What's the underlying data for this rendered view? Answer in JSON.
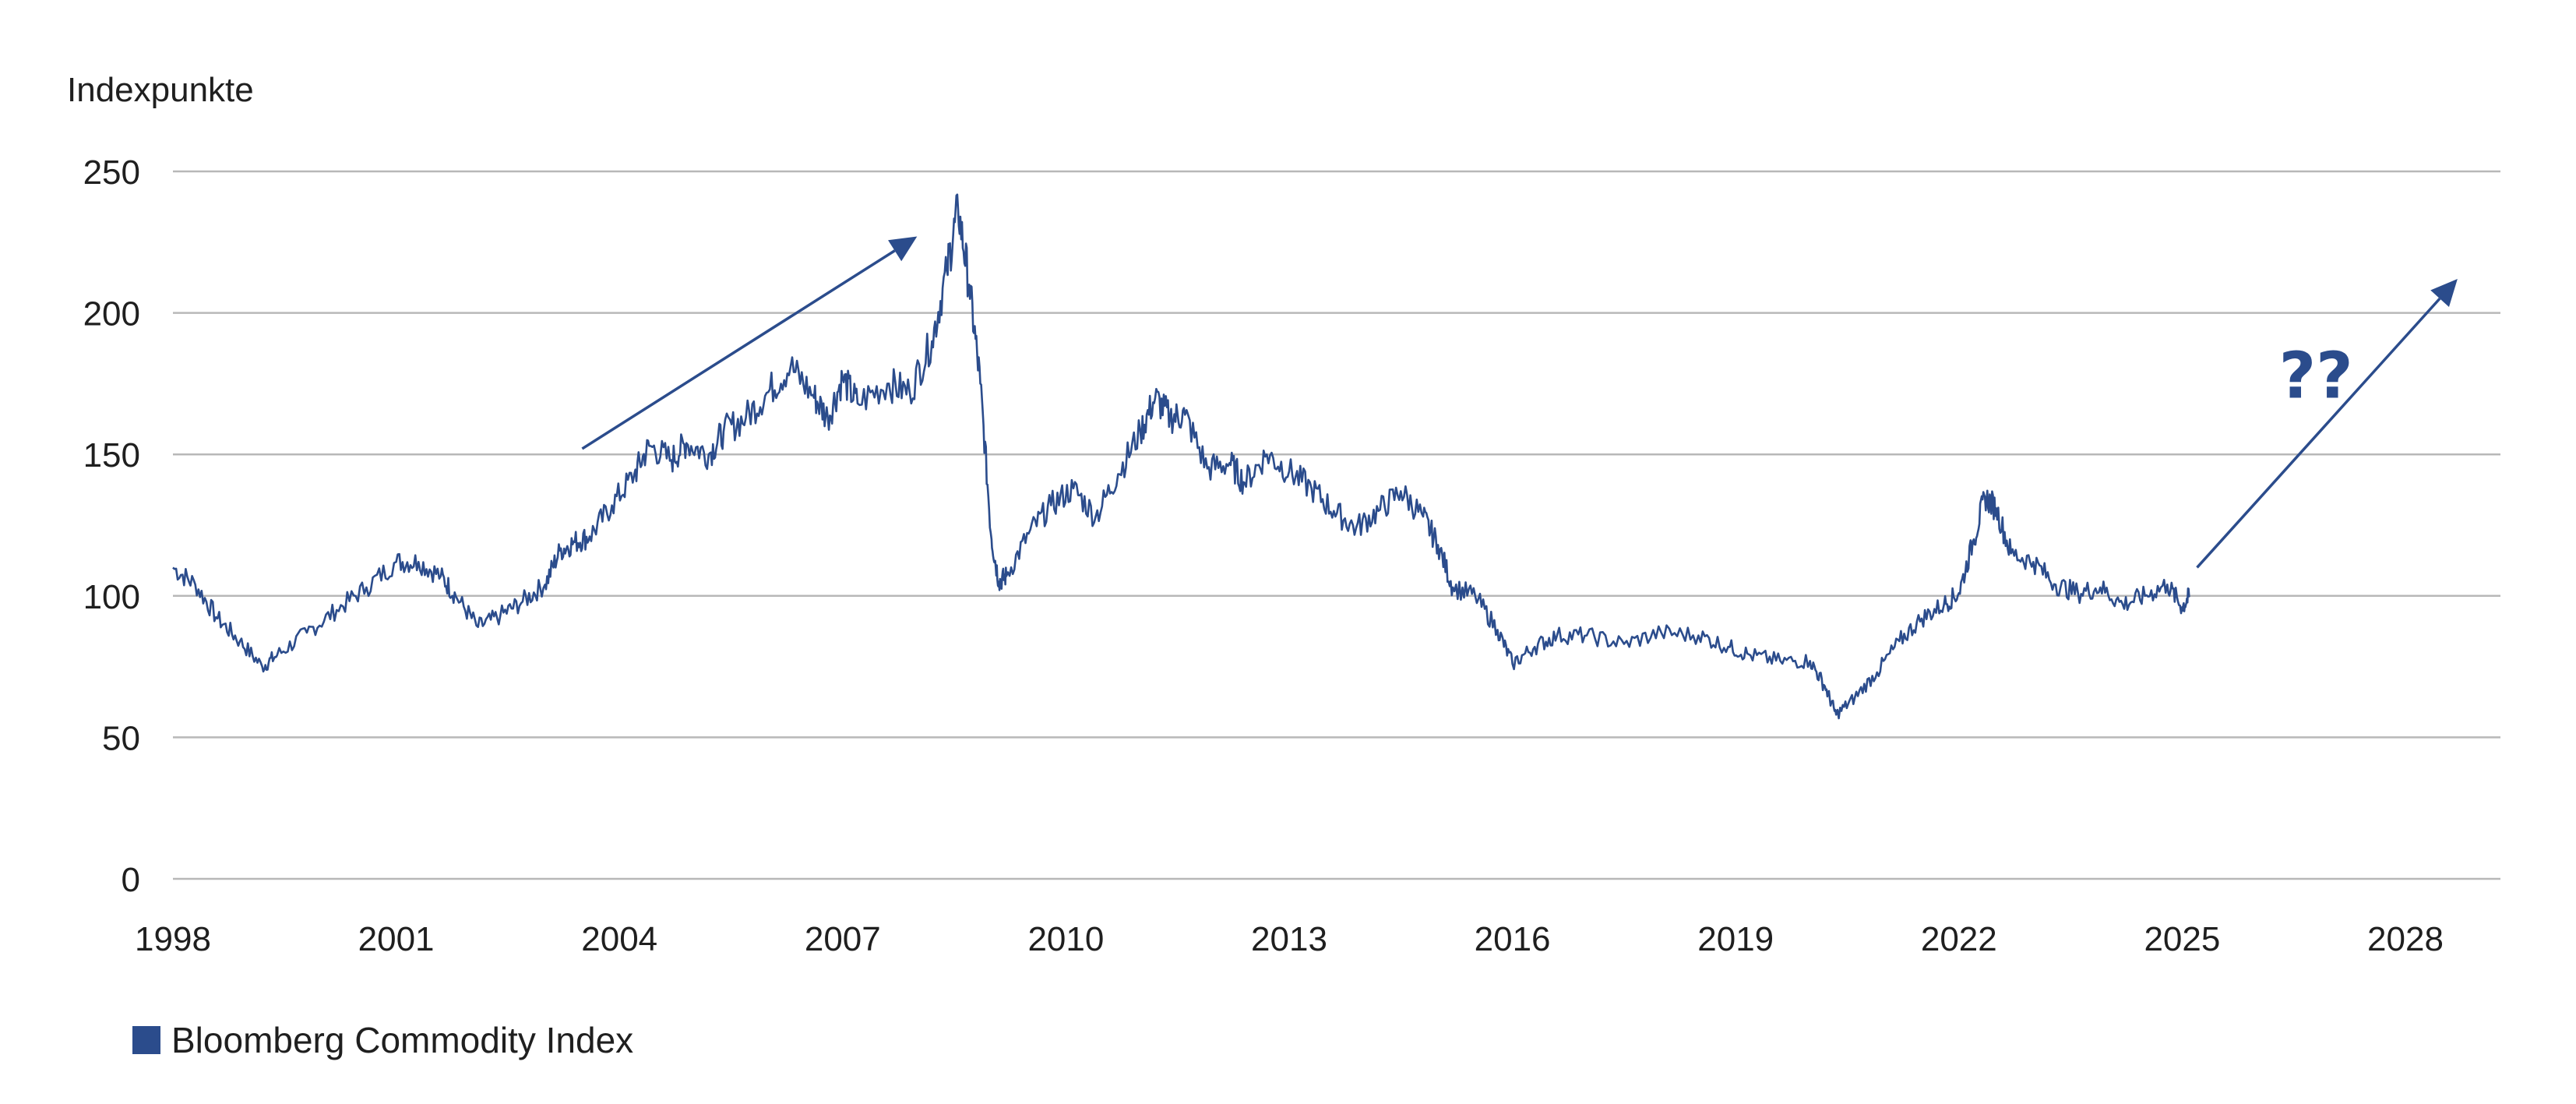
{
  "colors": {
    "series": "#2b4c8c",
    "grid": "#b8b8b8",
    "arrow": "#2b4c8c"
  },
  "chart_data": {
    "type": "line",
    "ylabel": "Indexpunkte",
    "xlabel": "",
    "xlim": [
      1998,
      2029.5
    ],
    "ylim": [
      0,
      250
    ],
    "y_ticks": [
      0,
      50,
      100,
      150,
      200,
      250
    ],
    "x_ticks": [
      "1998",
      "2001",
      "2004",
      "2007",
      "2010",
      "2013",
      "2016",
      "2019",
      "2022",
      "2025",
      "2028"
    ],
    "grid": "horizontal",
    "legend": "bottom-left",
    "series": [
      {
        "name": "Bloomberg Commodity Index",
        "x": [
          1998.0,
          1998.3,
          1998.6,
          1998.9,
          1999.2,
          1999.4,
          1999.8,
          2000.2,
          2000.6,
          2001.0,
          2001.3,
          2001.6,
          2001.8,
          2002.1,
          2002.4,
          2002.7,
          2003.0,
          2003.2,
          2003.4,
          2003.6,
          2003.9,
          2004.2,
          2004.4,
          2004.7,
          2004.9,
          2005.2,
          2005.4,
          2005.7,
          2006.0,
          2006.3,
          2006.6,
          2006.8,
          2007.0,
          2007.2,
          2007.6,
          2007.9,
          2008.2,
          2008.4,
          2008.55,
          2008.7,
          2008.85,
          2009.0,
          2009.1,
          2009.2,
          2009.5,
          2009.8,
          2010.1,
          2010.4,
          2010.7,
          2011.0,
          2011.2,
          2011.4,
          2011.6,
          2011.9,
          2012.2,
          2012.4,
          2012.7,
          2013.0,
          2013.3,
          2013.6,
          2013.9,
          2014.2,
          2014.5,
          2014.8,
          2015.0,
          2015.2,
          2015.5,
          2015.8,
          2016.0,
          2016.3,
          2016.6,
          2017.0,
          2017.5,
          2018.0,
          2018.5,
          2018.9,
          2019.2,
          2019.6,
          2020.0,
          2020.2,
          2020.35,
          2020.6,
          2020.9,
          2021.2,
          2021.5,
          2021.8,
          2022.0,
          2022.2,
          2022.35,
          2022.5,
          2022.7,
          2023.0,
          2023.3,
          2023.6,
          2023.9,
          2024.2,
          2024.5,
          2024.8,
          2025.0,
          2025.1
        ],
        "values": [
          110,
          104,
          92,
          84,
          75,
          79,
          87,
          95,
          103,
          112,
          112,
          107,
          100,
          89,
          93,
          98,
          104,
          116,
          119,
          121,
          132,
          143,
          153,
          148,
          154,
          150,
          158,
          163,
          172,
          181,
          171,
          163,
          177,
          168,
          175,
          172,
          190,
          215,
          237,
          210,
          175,
          120,
          105,
          107,
          122,
          132,
          138,
          128,
          143,
          158,
          170,
          163,
          164,
          145,
          147,
          140,
          150,
          144,
          138,
          130,
          124,
          130,
          137,
          128,
          118,
          103,
          100,
          88,
          76,
          82,
          86,
          86,
          83,
          87,
          86,
          82,
          79,
          77,
          77,
          68,
          58,
          64,
          73,
          84,
          92,
          97,
          101,
          120,
          135,
          131,
          115,
          112,
          104,
          101,
          103,
          97,
          100,
          104,
          96,
          100
        ]
      }
    ],
    "annotations": [
      {
        "type": "arrow",
        "x1": 2003.5,
        "y1": 152,
        "x2": 2008.0,
        "y2": 227
      },
      {
        "type": "arrow",
        "x1": 2025.2,
        "y1": 110,
        "x2": 2028.7,
        "y2": 212
      },
      {
        "type": "text",
        "text": "??",
        "x": 2026.3,
        "y": 170
      }
    ]
  }
}
